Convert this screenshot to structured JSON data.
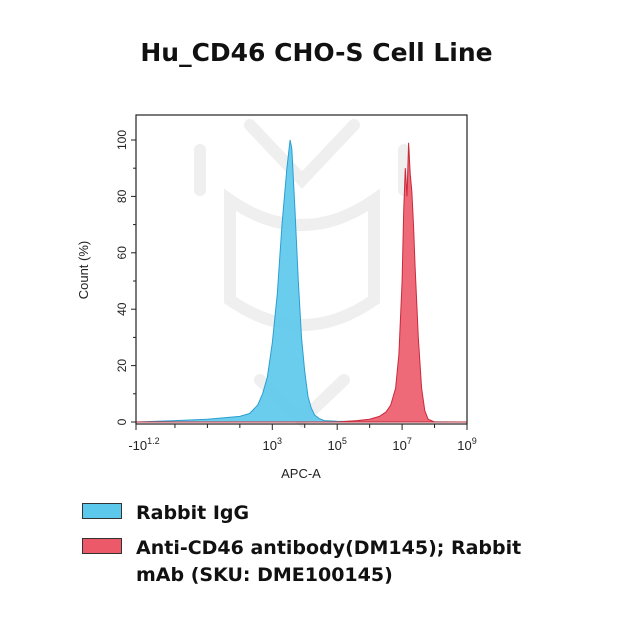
{
  "chart_data": {
    "type": "area",
    "title": "Hu_CD46 CHO-S Cell Line",
    "xlabel": "APC-A",
    "ylabel": "Count (%)",
    "xscale": "log",
    "xlim_log10": [
      -1.2,
      9
    ],
    "ylim": [
      0,
      100
    ],
    "x_ticks": [
      {
        "base": "-10",
        "exp": "1.2",
        "pos": -1.2
      },
      {
        "base": "10",
        "exp": "3",
        "pos": 3
      },
      {
        "base": "10",
        "exp": "5",
        "pos": 5
      },
      {
        "base": "10",
        "exp": "7",
        "pos": 7
      },
      {
        "base": "10",
        "exp": "9",
        "pos": 9
      }
    ],
    "y_ticks": [
      0,
      20,
      40,
      60,
      80,
      100
    ],
    "grid": false,
    "legend_position": "bottom",
    "series": [
      {
        "name": "Rabbit IgG",
        "color": "#5bc8ec",
        "x_log10": [
          -1.2,
          0.0,
          1.0,
          2.0,
          2.3,
          2.55,
          2.7,
          2.85,
          3.0,
          3.15,
          3.3,
          3.45,
          3.55,
          3.6,
          3.7,
          3.8,
          3.9,
          4.0,
          4.1,
          4.2,
          4.3,
          4.45,
          4.6,
          5.0,
          9.0
        ],
        "values": [
          0,
          0.5,
          1,
          2,
          3,
          6,
          10,
          16,
          28,
          45,
          70,
          90,
          100,
          97,
          75,
          50,
          30,
          18,
          9,
          5,
          2.5,
          1.2,
          0.5,
          0.3,
          0
        ]
      },
      {
        "name": "Anti-CD46 antibody(DM145); Rabbit mAb (SKU: DME100145)",
        "color": "#ec5a6a",
        "x_log10": [
          -1.2,
          5.0,
          5.6,
          6.0,
          6.3,
          6.5,
          6.65,
          6.8,
          6.9,
          7.0,
          7.05,
          7.1,
          7.15,
          7.2,
          7.25,
          7.3,
          7.35,
          7.4,
          7.5,
          7.6,
          7.7,
          7.8,
          8.0,
          9.0
        ],
        "values": [
          0,
          0,
          0.5,
          1,
          2,
          3.5,
          6,
          12,
          24,
          50,
          75,
          90,
          80,
          99,
          88,
          82,
          70,
          55,
          30,
          12,
          4,
          1,
          0,
          0
        ]
      }
    ]
  }
}
